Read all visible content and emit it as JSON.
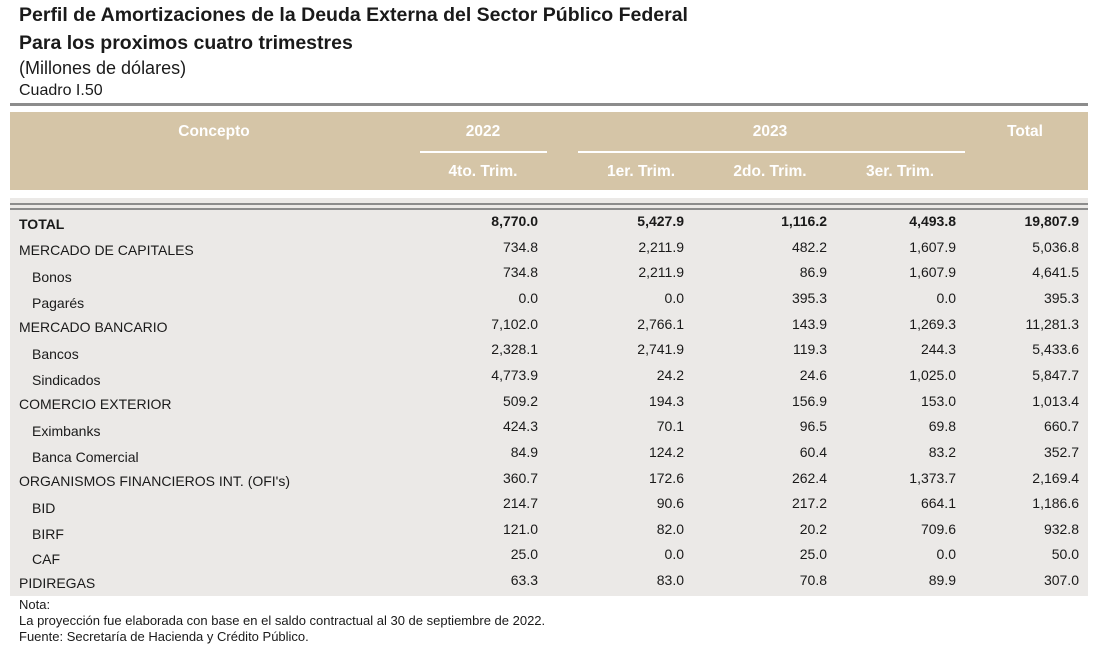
{
  "header": {
    "title": "Perfil de Amortizaciones de la Deuda Externa del Sector Público Federal",
    "subtitle": "Para los proximos cuatro trimestres",
    "units": "(Millones de dólares)",
    "table_id": "Cuadro  I.50"
  },
  "table": {
    "columns": {
      "concept": "Concepto",
      "years": [
        "2022",
        "2023"
      ],
      "total": "Total",
      "quarters": [
        "4to. Trim.",
        "1er. Trim.",
        "2do. Trim.",
        "3er. Trim."
      ]
    },
    "total": {
      "label": "TOTAL",
      "values": [
        "8,770.0",
        "5,427.9",
        "1,116.2",
        "4,493.8",
        "19,807.9"
      ]
    },
    "groups": [
      {
        "label": "MERCADO DE CAPITALES",
        "values": [
          "734.8",
          "2,211.9",
          "482.2",
          "1,607.9",
          "5,036.8"
        ],
        "items": [
          {
            "label": "Bonos",
            "values": [
              "734.8",
              "2,211.9",
              "86.9",
              "1,607.9",
              "4,641.5"
            ]
          },
          {
            "label": "Pagarés",
            "values": [
              "0.0",
              "0.0",
              "395.3",
              "0.0",
              "395.3"
            ]
          }
        ]
      },
      {
        "label": "MERCADO BANCARIO",
        "values": [
          "7,102.0",
          "2,766.1",
          "143.9",
          "1,269.3",
          "11,281.3"
        ],
        "items": [
          {
            "label": "Bancos",
            "values": [
              "2,328.1",
              "2,741.9",
              "119.3",
              "244.3",
              "5,433.6"
            ]
          },
          {
            "label": "Sindicados",
            "values": [
              "4,773.9",
              "24.2",
              "24.6",
              "1,025.0",
              "5,847.7"
            ]
          }
        ]
      },
      {
        "label": "COMERCIO EXTERIOR",
        "values": [
          "509.2",
          "194.3",
          "156.9",
          "153.0",
          "1,013.4"
        ],
        "items": [
          {
            "label": "Eximbanks",
            "values": [
              "424.3",
              "70.1",
              "96.5",
              "69.8",
              "660.7"
            ]
          },
          {
            "label": "Banca Comercial",
            "values": [
              "84.9",
              "124.2",
              "60.4",
              "83.2",
              "352.7"
            ]
          }
        ]
      },
      {
        "label": "ORGANISMOS FINANCIEROS INT. (OFI's)",
        "values": [
          "360.7",
          "172.6",
          "262.4",
          "1,373.7",
          "2,169.4"
        ],
        "items": [
          {
            "label": "BID",
            "values": [
              "214.7",
              "90.6",
              "217.2",
              "664.1",
              "1,186.6"
            ]
          },
          {
            "label": "BIRF",
            "values": [
              "121.0",
              "82.0",
              "20.2",
              "709.6",
              "932.8"
            ]
          },
          {
            "label": "CAF",
            "values": [
              "25.0",
              "0.0",
              "25.0",
              "0.0",
              "50.0"
            ]
          }
        ]
      },
      {
        "label": "PIDIREGAS",
        "values": [
          "63.3",
          "83.0",
          "70.8",
          "89.9",
          "307.0"
        ],
        "items": []
      }
    ]
  },
  "notes": [
    "Nota:",
    "La proyección fue elaborada con base en el saldo contractual al 30 de septiembre de 2022.",
    "Fuente: Secretaría de Hacienda y Crédito Público."
  ]
}
